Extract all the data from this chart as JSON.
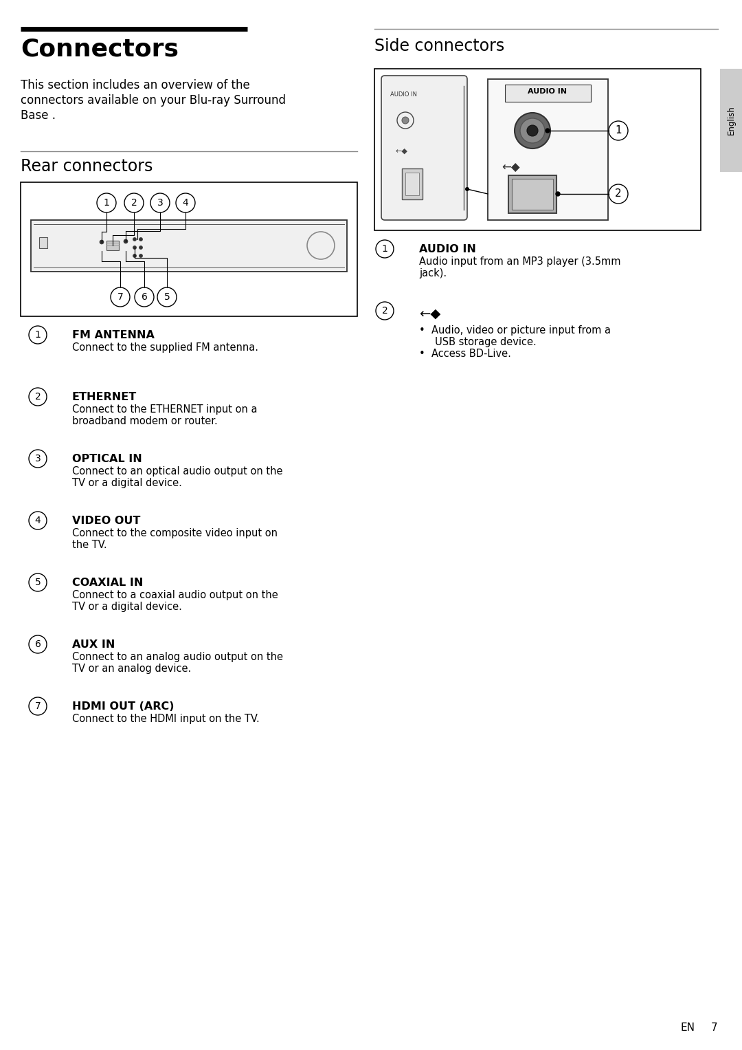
{
  "title": "Connectors",
  "subtitle_lines": [
    "This section includes an overview of the",
    "connectors available on your Blu-ray Surround",
    "Base ."
  ],
  "rear_section_title": "Rear connectors",
  "side_section_title": "Side connectors",
  "bg_color": "#ffffff",
  "text_color": "#000000",
  "rear_items": [
    {
      "num": "1",
      "title": "FM ANTENNA",
      "desc": [
        "Connect to the supplied FM antenna."
      ]
    },
    {
      "num": "2",
      "title": "ETHERNET",
      "desc": [
        "Connect to the ETHERNET input on a",
        "broadband modem or router."
      ]
    },
    {
      "num": "3",
      "title": "OPTICAL IN",
      "desc": [
        "Connect to an optical audio output on the",
        "TV or a digital device."
      ]
    },
    {
      "num": "4",
      "title": "VIDEO OUT",
      "desc": [
        "Connect to the composite video input on",
        "the TV."
      ]
    },
    {
      "num": "5",
      "title": "COAXIAL IN",
      "desc": [
        "Connect to a coaxial audio output on the",
        "TV or a digital device."
      ]
    },
    {
      "num": "6",
      "title": "AUX IN",
      "desc": [
        "Connect to an analog audio output on the",
        "TV or an analog device."
      ]
    },
    {
      "num": "7",
      "title": "HDMI OUT (ARC)",
      "desc": [
        "Connect to the HDMI input on the TV."
      ]
    }
  ],
  "side_item1_title": "AUDIO IN",
  "side_item1_desc": [
    "Audio input from an MP3 player (3.5mm",
    "jack)."
  ],
  "side_item2_desc1_lines": [
    "Audio, video or picture input from a",
    "USB storage device."
  ],
  "side_item2_desc2": "Access BD-Live.",
  "sidebar_text": "English",
  "page_num": "7",
  "page_en": "EN"
}
